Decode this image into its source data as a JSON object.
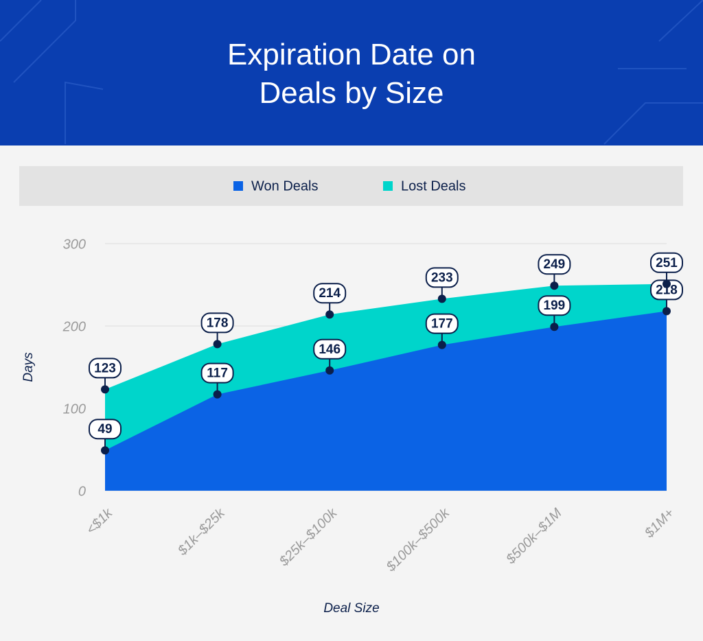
{
  "chart_data": {
    "type": "area",
    "title": "Expiration Date on Deals by Size",
    "x_label": "Deal Size",
    "y_label": "Days",
    "categories": [
      "<$1k",
      "$1k–$25k",
      "$25k–$100k",
      "$100k–$500k",
      "$500k–$1M",
      "$1M+"
    ],
    "series": [
      {
        "name": "Won Deals",
        "color": "#0b63e5",
        "values": [
          49,
          117,
          146,
          177,
          199,
          218
        ]
      },
      {
        "name": "Lost Deals",
        "color": "#00d5cb",
        "values": [
          123,
          178,
          214,
          233,
          249,
          251
        ]
      }
    ],
    "ylim": [
      0,
      300
    ],
    "yticks": [
      0,
      100,
      200,
      300
    ],
    "grid": true
  }
}
